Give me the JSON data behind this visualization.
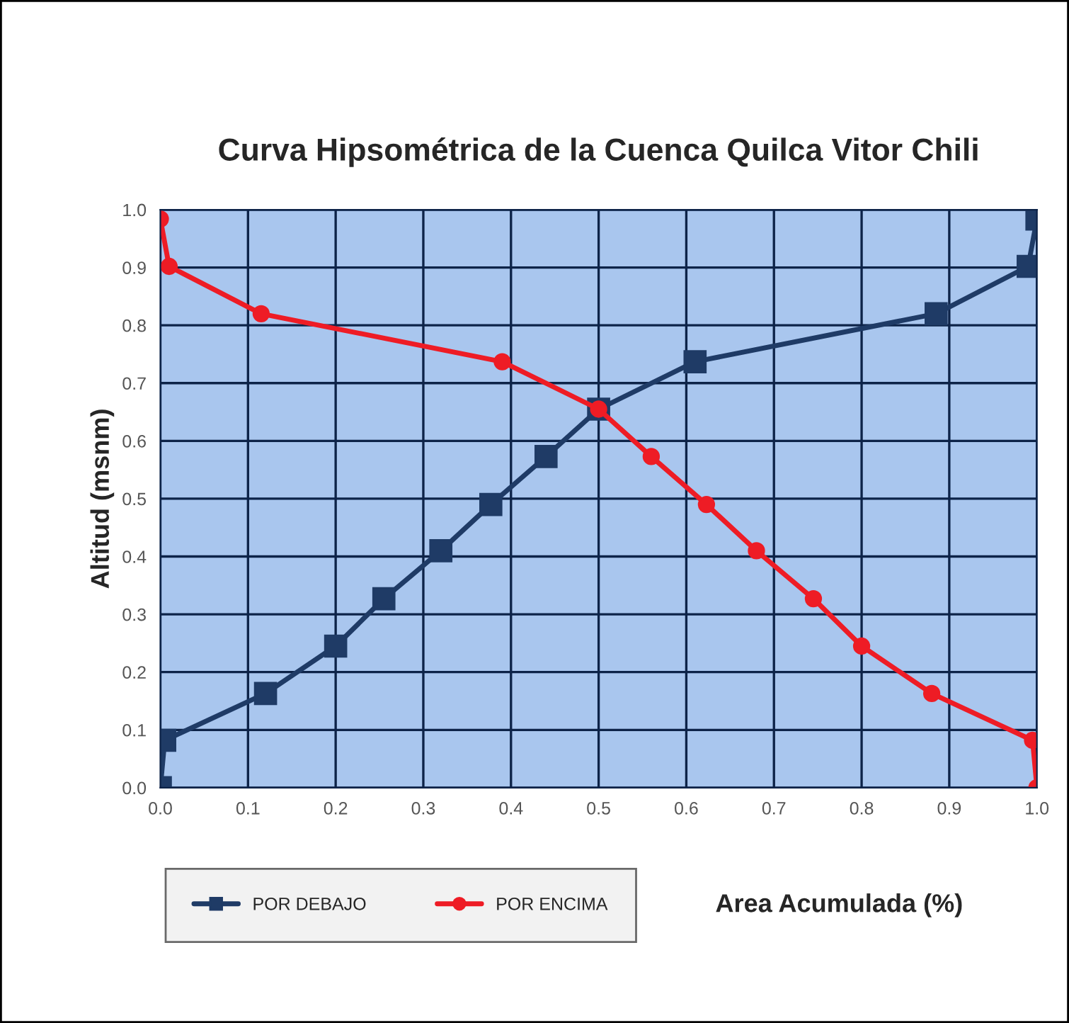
{
  "chart_data": {
    "type": "line",
    "title": "Curva Hipsométrica de la Cuenca Quilca Vitor Chili",
    "xlabel": "Area Acumulada (%)",
    "ylabel": "Altitud (msnm)",
    "xlim": [
      0,
      1
    ],
    "ylim": [
      0,
      1
    ],
    "xticks": [
      {
        "value": 0,
        "label": "0.0"
      },
      0.1,
      0.2,
      0.3,
      0.4,
      0.5,
      0.6,
      0.7,
      0.8,
      0.9,
      {
        "value": 1,
        "label": "1.0"
      }
    ],
    "yticks": [
      {
        "value": 0,
        "label": "0.0"
      },
      0.1,
      0.2,
      0.3,
      0.4,
      0.5,
      0.6,
      0.7,
      0.8,
      0.9,
      {
        "value": 1,
        "label": "1.0"
      }
    ],
    "grid": true,
    "legend": "bottom left",
    "series": [
      {
        "name": "POR DEBAJO",
        "color": "#1f3b66",
        "marker": "square",
        "x": [
          0,
          0.005,
          0.12,
          0.2,
          0.255,
          0.32,
          0.377,
          0.44,
          0.5,
          0.61,
          0.885,
          0.99,
          1.0
        ],
        "values": [
          0,
          0.082,
          0.163,
          0.245,
          0.327,
          0.41,
          0.49,
          0.573,
          0.655,
          0.737,
          0.82,
          0.902,
          0.984
        ]
      },
      {
        "name": "POR ENCIMA",
        "color": "#ee1c25",
        "marker": "circle",
        "x": [
          0,
          0.01,
          0.115,
          0.39,
          0.5,
          0.56,
          0.623,
          0.68,
          0.745,
          0.8,
          0.88,
          0.995,
          1.0
        ],
        "values": [
          0.984,
          0.902,
          0.82,
          0.737,
          0.655,
          0.573,
          0.49,
          0.41,
          0.327,
          0.245,
          0.163,
          0.082,
          0
        ]
      }
    ]
  }
}
